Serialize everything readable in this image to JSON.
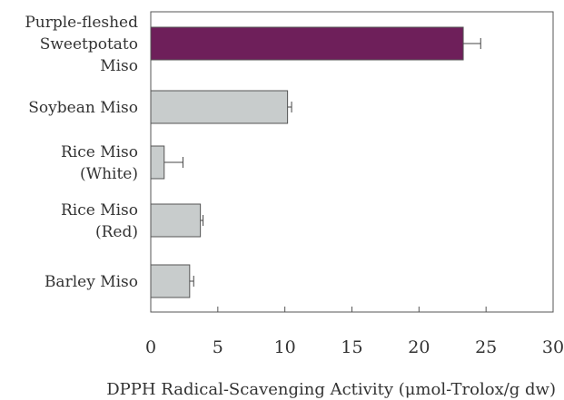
{
  "chart_data": {
    "type": "bar",
    "orientation": "horizontal",
    "categories": [
      [
        "Purple-fleshed",
        "Sweetpotato",
        "Miso"
      ],
      [
        "Soybean Miso"
      ],
      [
        "Rice Miso",
        "(White)"
      ],
      [
        "Rice Miso",
        "(Red)"
      ],
      [
        "Barley Miso"
      ]
    ],
    "values": [
      23.3,
      10.2,
      1.0,
      3.7,
      2.9
    ],
    "errors": [
      1.3,
      0.3,
      1.4,
      0.2,
      0.3
    ],
    "bar_colors": [
      "#6e1f5a",
      "#c8cccc",
      "#c8cccc",
      "#c8cccc",
      "#c8cccc"
    ],
    "xlim": [
      0,
      30
    ],
    "xticks": [
      0,
      5,
      10,
      15,
      20,
      25,
      30
    ],
    "xlabel": "DPPH Radical-Scavenging Activity (μmol-Trolox/g dw)",
    "grid": false
  }
}
